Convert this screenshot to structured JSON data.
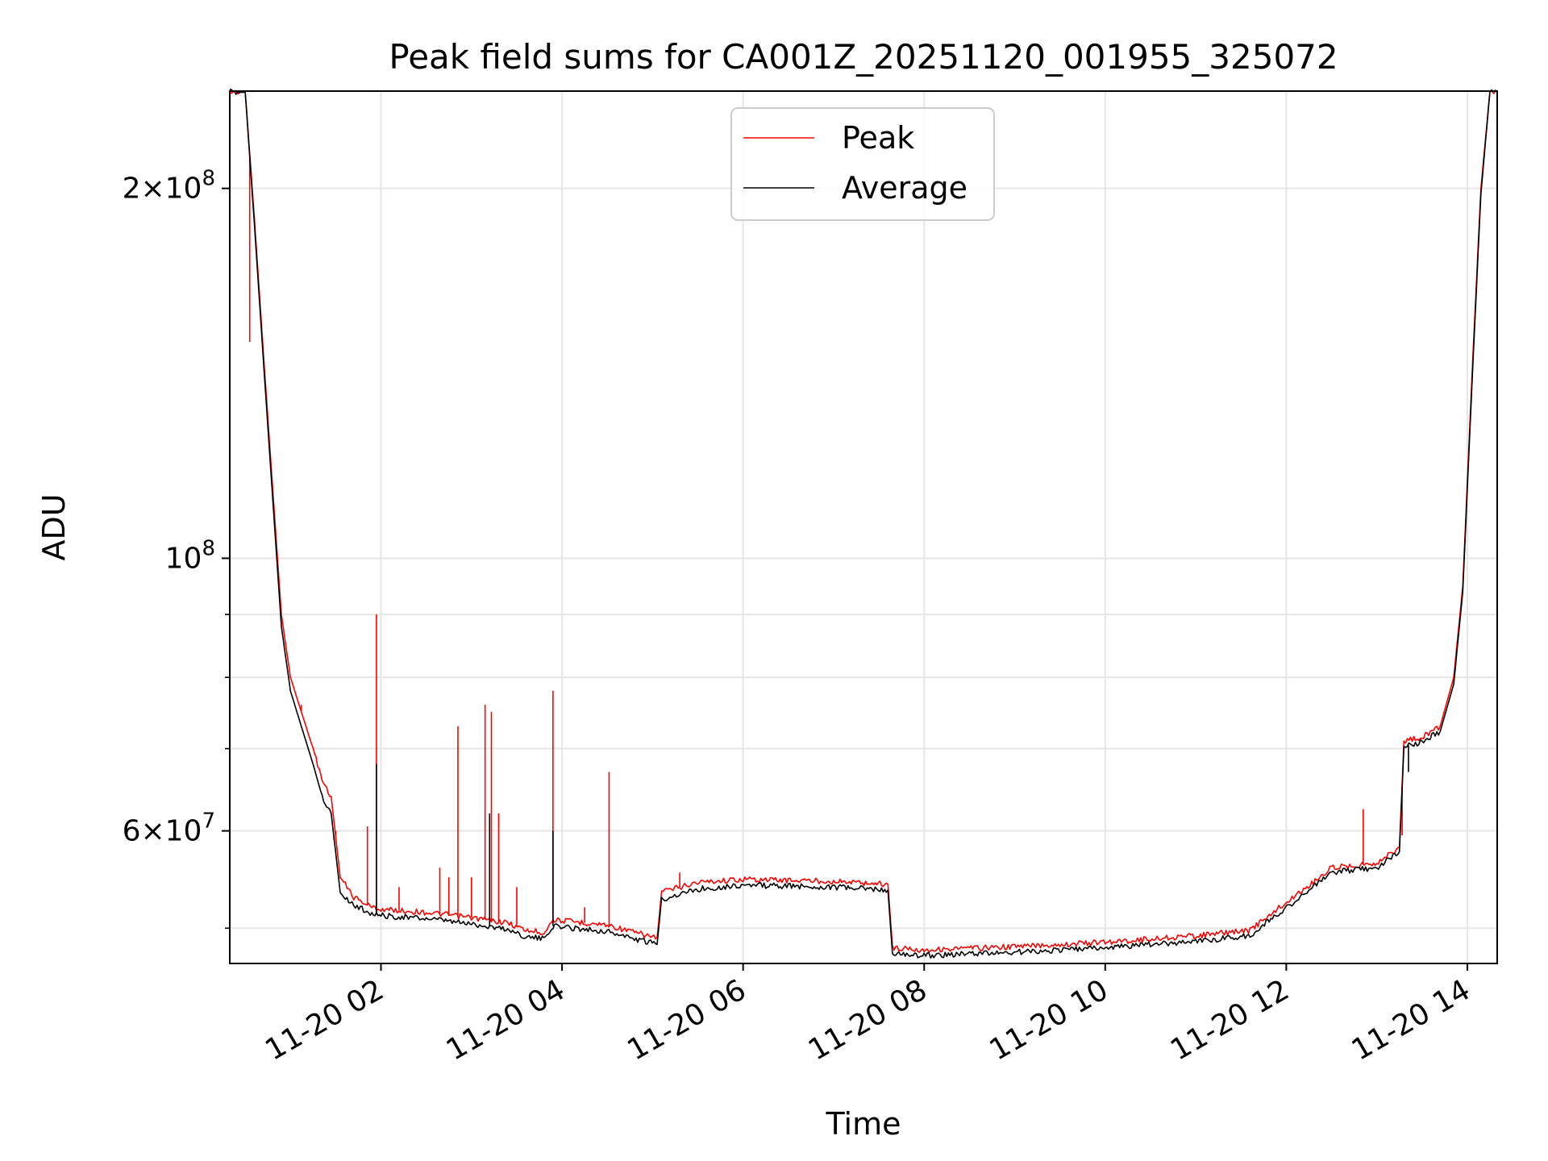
{
  "chart_data": {
    "type": "line",
    "title": "Peak field sums for CA001Z_20251120_001955_325072",
    "xlabel": "Time",
    "ylabel": "ADU",
    "yscale": "log",
    "xlim_hours": [
      0.33,
      14.33
    ],
    "ylim": [
      46800000,
      240000000
    ],
    "grid": true,
    "legend_position": "top-center",
    "x_ticks": [
      {
        "hour": 2,
        "label": "11-20 02"
      },
      {
        "hour": 4,
        "label": "11-20 04"
      },
      {
        "hour": 6,
        "label": "11-20 06"
      },
      {
        "hour": 8,
        "label": "11-20 08"
      },
      {
        "hour": 10,
        "label": "11-20 10"
      },
      {
        "hour": 12,
        "label": "11-20 12"
      },
      {
        "hour": 14,
        "label": "11-20 14"
      }
    ],
    "y_major_ticks": [
      {
        "value": 60000000,
        "mant": "6",
        "exp": "7"
      },
      {
        "value": 100000000,
        "mant": "",
        "exp": "8"
      },
      {
        "value": 200000000,
        "mant": "2",
        "exp": "8"
      }
    ],
    "y_minor_ticks": [
      50000000,
      70000000,
      80000000,
      90000000
    ],
    "series": [
      {
        "name": "Peak",
        "color": "#ff0000",
        "points": [
          [
            0.33,
            240000000
          ],
          [
            0.5,
            240000000
          ],
          [
            0.6,
            190000000
          ],
          [
            0.75,
            130000000
          ],
          [
            0.9,
            90000000
          ],
          [
            1.0,
            80000000
          ],
          [
            1.12,
            75000000
          ],
          [
            1.25,
            70000000
          ],
          [
            1.35,
            66000000
          ],
          [
            1.45,
            64000000
          ],
          [
            1.55,
            55000000
          ],
          [
            1.7,
            53000000
          ],
          [
            1.9,
            52000000
          ],
          [
            2.0,
            51800000
          ],
          [
            2.5,
            51500000
          ],
          [
            3.0,
            51000000
          ],
          [
            3.4,
            50500000
          ],
          [
            3.6,
            49800000
          ],
          [
            3.8,
            49600000
          ],
          [
            3.9,
            50800000
          ],
          [
            4.5,
            50300000
          ],
          [
            4.8,
            49600000
          ],
          [
            5.05,
            49100000
          ],
          [
            5.1,
            53500000
          ],
          [
            5.5,
            54500000
          ],
          [
            6.0,
            54800000
          ],
          [
            7.0,
            54600000
          ],
          [
            7.6,
            54300000
          ],
          [
            7.65,
            48200000
          ],
          [
            8.0,
            48000000
          ],
          [
            9.0,
            48300000
          ],
          [
            10.0,
            48700000
          ],
          [
            11.0,
            49300000
          ],
          [
            11.6,
            49800000
          ],
          [
            11.9,
            51800000
          ],
          [
            12.3,
            54500000
          ],
          [
            12.5,
            56000000
          ],
          [
            12.7,
            56200000
          ],
          [
            13.0,
            56500000
          ],
          [
            13.25,
            58200000
          ],
          [
            13.3,
            71000000
          ],
          [
            13.5,
            71500000
          ],
          [
            13.7,
            73000000
          ],
          [
            13.85,
            80000000
          ],
          [
            13.95,
            95000000
          ],
          [
            14.05,
            140000000
          ],
          [
            14.15,
            200000000
          ],
          [
            14.25,
            240000000
          ],
          [
            14.33,
            240000000
          ]
        ],
        "spikes": [
          [
            0.55,
            150000000
          ],
          [
            1.12,
            76000000
          ],
          [
            1.5,
            60000000
          ],
          [
            1.85,
            60500000
          ],
          [
            1.95,
            90000000
          ],
          [
            2.2,
            54000000
          ],
          [
            2.65,
            56000000
          ],
          [
            2.75,
            55000000
          ],
          [
            2.85,
            73000000
          ],
          [
            3.0,
            55000000
          ],
          [
            3.15,
            76000000
          ],
          [
            3.22,
            75000000
          ],
          [
            3.3,
            62000000
          ],
          [
            3.5,
            54000000
          ],
          [
            3.9,
            78000000
          ],
          [
            4.25,
            52000000
          ],
          [
            4.52,
            67000000
          ],
          [
            5.3,
            55500000
          ],
          [
            12.85,
            62500000
          ],
          [
            13.28,
            59500000
          ]
        ]
      },
      {
        "name": "Average",
        "color": "#000000",
        "points": [
          [
            0.33,
            240000000
          ],
          [
            0.5,
            240000000
          ],
          [
            0.6,
            188000000
          ],
          [
            0.75,
            128000000
          ],
          [
            0.9,
            88000000
          ],
          [
            1.0,
            78000000
          ],
          [
            1.12,
            73000000
          ],
          [
            1.25,
            68000000
          ],
          [
            1.35,
            64000000
          ],
          [
            1.45,
            62000000
          ],
          [
            1.55,
            53500000
          ],
          [
            1.7,
            52200000
          ],
          [
            1.9,
            51400000
          ],
          [
            2.0,
            51200000
          ],
          [
            2.5,
            50900000
          ],
          [
            3.0,
            50400000
          ],
          [
            3.4,
            49900000
          ],
          [
            3.6,
            49200000
          ],
          [
            3.8,
            49000000
          ],
          [
            3.9,
            50200000
          ],
          [
            4.5,
            49700000
          ],
          [
            4.8,
            49000000
          ],
          [
            5.05,
            48500000
          ],
          [
            5.1,
            52800000
          ],
          [
            5.5,
            53800000
          ],
          [
            6.0,
            54200000
          ],
          [
            7.0,
            54000000
          ],
          [
            7.6,
            53700000
          ],
          [
            7.65,
            47600000
          ],
          [
            8.0,
            47500000
          ],
          [
            9.0,
            47800000
          ],
          [
            10.0,
            48200000
          ],
          [
            11.0,
            48800000
          ],
          [
            11.6,
            49300000
          ],
          [
            11.9,
            51300000
          ],
          [
            12.3,
            54000000
          ],
          [
            12.5,
            55500000
          ],
          [
            12.7,
            55700000
          ],
          [
            13.0,
            56000000
          ],
          [
            13.25,
            57700000
          ],
          [
            13.3,
            70300000
          ],
          [
            13.5,
            70900000
          ],
          [
            13.7,
            72300000
          ],
          [
            13.85,
            79000000
          ],
          [
            13.95,
            94000000
          ],
          [
            14.05,
            138000000
          ],
          [
            14.15,
            198000000
          ],
          [
            14.25,
            240000000
          ],
          [
            14.33,
            240000000
          ]
        ],
        "spikes": [
          [
            1.48,
            59000000
          ],
          [
            1.95,
            68000000
          ],
          [
            3.2,
            62000000
          ],
          [
            3.9,
            60000000
          ],
          [
            13.35,
            67000000
          ]
        ]
      }
    ]
  }
}
